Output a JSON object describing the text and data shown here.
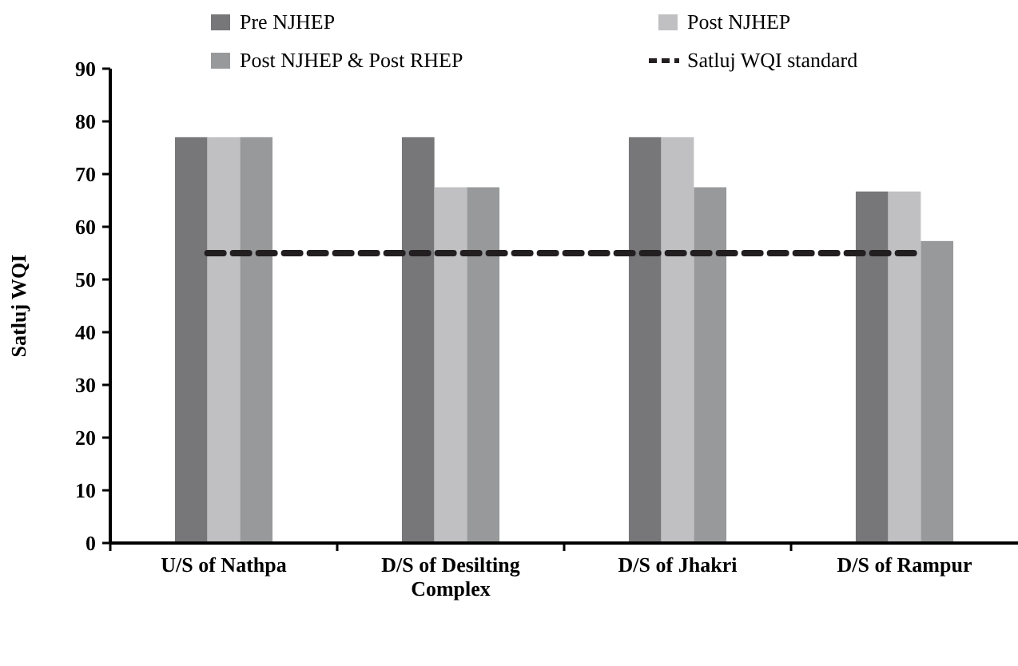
{
  "chart_data": {
    "type": "bar",
    "ylabel": "Satluj WQI",
    "categories": [
      "U/S of Nathpa",
      "D/S of Desilting Complex",
      "D/S of Jhakri",
      "D/S of Rampur"
    ],
    "series": [
      {
        "name": "Pre NJHEP",
        "color": "#77777a",
        "values": [
          77,
          77,
          77,
          66.7
        ]
      },
      {
        "name": "Post NJHEP",
        "color": "#c0c0c2",
        "values": [
          77,
          67.5,
          77,
          66.7
        ]
      },
      {
        "name": "Post NJHEP & Post RHEP",
        "color": "#98999b",
        "values": [
          77,
          67.5,
          67.5,
          57.3
        ]
      }
    ],
    "ref_lines": [
      {
        "axis": "y",
        "value": 55,
        "label": "Satluj WQI standard",
        "color": "#231f20",
        "line_style": "dashed"
      }
    ],
    "ylim": [
      0,
      90
    ],
    "yticks": [
      0,
      10,
      20,
      30,
      40,
      50,
      60,
      70,
      80,
      90
    ],
    "grid": false,
    "legend": "top"
  }
}
